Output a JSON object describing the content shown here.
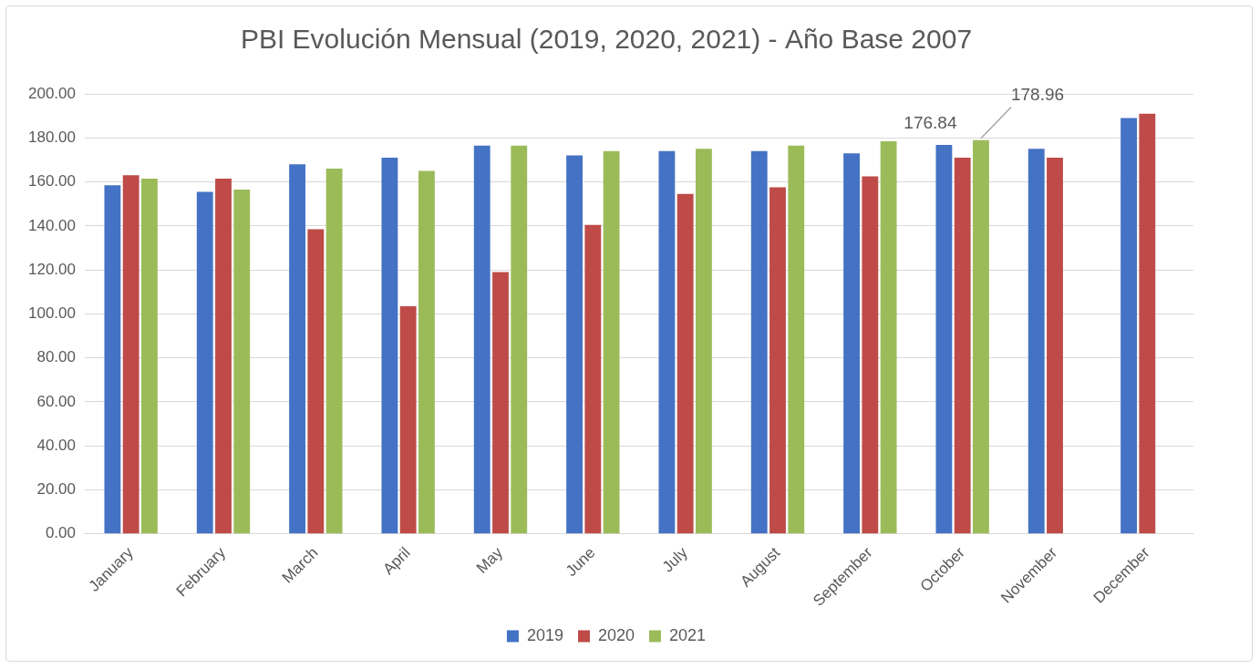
{
  "chart_data": {
    "type": "bar",
    "title": "PBI Evolución Mensual (2019, 2020, 2021) - Año Base 2007",
    "categories": [
      "January",
      "February",
      "March",
      "April",
      "May",
      "June",
      "July",
      "August",
      "September",
      "October",
      "November",
      "December"
    ],
    "series": [
      {
        "name": "2019",
        "color": "#4472c4",
        "values": [
          158.5,
          155.5,
          168,
          171,
          176.5,
          172,
          174,
          174,
          173,
          176.84,
          175,
          189
        ]
      },
      {
        "name": "2020",
        "color": "#be4b48",
        "values": [
          163,
          161.5,
          138.5,
          103.5,
          119,
          140.5,
          154.5,
          157.5,
          162.5,
          171,
          171,
          191
        ]
      },
      {
        "name": "2021",
        "color": "#9bbb59",
        "values": [
          161.5,
          156.5,
          166,
          165,
          176.5,
          174,
          175,
          176.5,
          178.5,
          178.96,
          null,
          null
        ]
      }
    ],
    "ylim": [
      0,
      200
    ],
    "yticks": [
      {
        "value": 0,
        "label": "0.00"
      },
      {
        "value": 20,
        "label": "20.00"
      },
      {
        "value": 40,
        "label": "40.00"
      },
      {
        "value": 60,
        "label": "60.00"
      },
      {
        "value": 80,
        "label": "80.00"
      },
      {
        "value": 100,
        "label": "100.00"
      },
      {
        "value": 120,
        "label": "120.00"
      },
      {
        "value": 140,
        "label": "140.00"
      },
      {
        "value": 160,
        "label": "160.00"
      },
      {
        "value": 180,
        "label": "180.00"
      },
      {
        "value": 200,
        "label": "200.00"
      }
    ],
    "grid": true,
    "legend": "bottom",
    "annotations": [
      {
        "series": "2019",
        "category": "October",
        "label": "176.84"
      },
      {
        "series": "2021",
        "category": "October",
        "label": "178.96"
      }
    ]
  }
}
